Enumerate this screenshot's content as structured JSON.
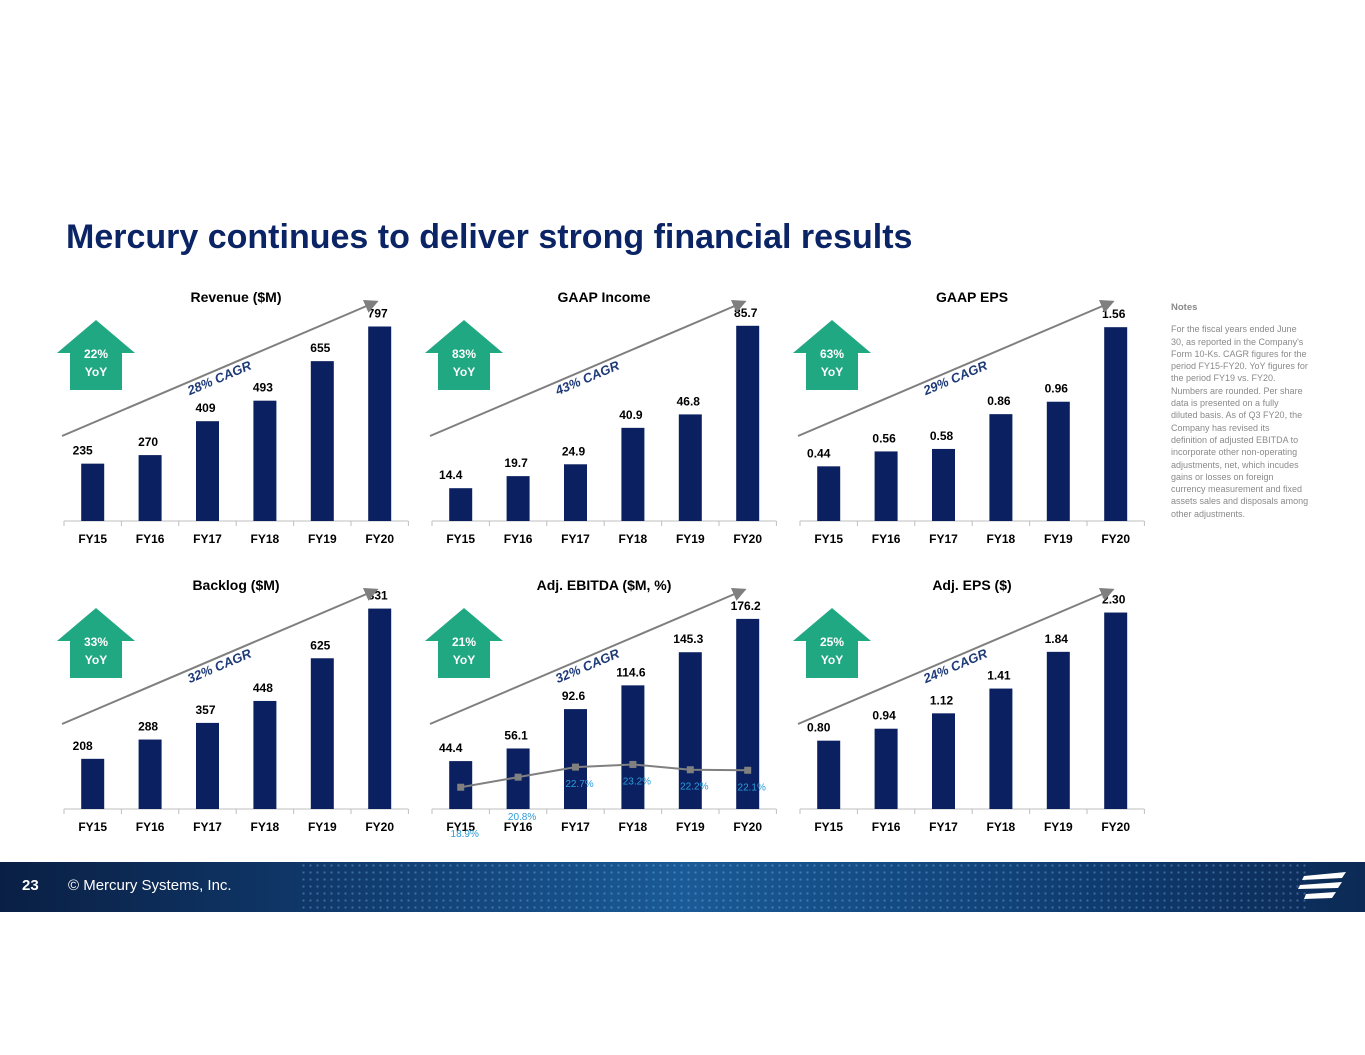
{
  "page_title": "Mercury continues to deliver strong financial results",
  "notes_heading": "Notes",
  "notes_lines": [
    "For the fiscal years ended June",
    "30, as reported in the Company's",
    "Form 10-Ks. CAGR figures for the",
    "period FY15-FY20. YoY figures for",
    "the period FY19 vs. FY20.",
    "Numbers are rounded. Per share",
    "data is presented on a fully",
    "diluted basis. As of Q3 FY20, the",
    "Company has revised its",
    "definition of adjusted EBITDA to",
    "incorporate other non-operating",
    "adjustments, net, which incudes",
    "gains or losses on foreign",
    "currency measurement and fixed",
    "assets sales and disposals among",
    "other adjustments."
  ],
  "footer": {
    "page_number": "23",
    "copyright": "© Mercury Systems, Inc."
  },
  "colors": {
    "bar": "#0b2060",
    "yoy_arrow": "#1fa882",
    "cagr_text": "#1e3a78",
    "trend_arrow": "#7f7f7f",
    "margin_line": "#808080",
    "margin_label": "#2b9cd8"
  },
  "chart_data": [
    {
      "type": "bar",
      "title": "Revenue ($M)",
      "categories": [
        "FY15",
        "FY16",
        "FY17",
        "FY18",
        "FY19",
        "FY20"
      ],
      "values": [
        235,
        270,
        409,
        493,
        655,
        797
      ],
      "labels": [
        "235",
        "270",
        "409",
        "493",
        "655",
        "797"
      ],
      "ylim": [
        0,
        840
      ],
      "yoy": "22%",
      "yoy_sub": "YoY",
      "cagr": "28% CAGR"
    },
    {
      "type": "bar",
      "title": "GAAP Income",
      "categories": [
        "FY15",
        "FY16",
        "FY17",
        "FY18",
        "FY19",
        "FY20"
      ],
      "values": [
        14.4,
        19.7,
        24.9,
        40.9,
        46.8,
        85.7
      ],
      "labels": [
        "14.4",
        "19.7",
        "24.9",
        "40.9",
        "46.8",
        "85.7"
      ],
      "ylim": [
        0,
        90
      ],
      "yoy": "83%",
      "yoy_sub": "YoY",
      "cagr": "43% CAGR"
    },
    {
      "type": "bar",
      "title": "GAAP EPS",
      "categories": [
        "FY15",
        "FY16",
        "FY17",
        "FY18",
        "FY19",
        "FY20"
      ],
      "values": [
        0.44,
        0.56,
        0.58,
        0.86,
        0.96,
        1.56
      ],
      "labels": [
        "0.44",
        "0.56",
        "0.58",
        "0.86",
        "0.96",
        "1.56"
      ],
      "ylim": [
        0,
        1.65
      ],
      "yoy": "63%",
      "yoy_sub": "YoY",
      "cagr": "29% CAGR"
    },
    {
      "type": "bar",
      "title": "Backlog ($M)",
      "categories": [
        "FY15",
        "FY16",
        "FY17",
        "FY18",
        "FY19",
        "FY20"
      ],
      "values": [
        208,
        288,
        357,
        448,
        625,
        831
      ],
      "labels": [
        "208",
        "288",
        "357",
        "448",
        "625",
        "831"
      ],
      "ylim": [
        0,
        850
      ],
      "yoy": "33%",
      "yoy_sub": "YoY",
      "cagr": "32% CAGR"
    },
    {
      "type": "bar",
      "title": "Adj. EBITDA ($M, %)",
      "categories": [
        "FY15",
        "FY16",
        "FY17",
        "FY18",
        "FY19",
        "FY20"
      ],
      "values": [
        44.4,
        56.1,
        92.6,
        114.6,
        145.3,
        176.2
      ],
      "labels": [
        "44.4",
        "56.1",
        "92.6",
        "114.6",
        "145.3",
        "176.2"
      ],
      "ylim": [
        0,
        190
      ],
      "yoy": "21%",
      "yoy_sub": "YoY",
      "cagr": "32% CAGR",
      "margin_pct": [
        18.9,
        20.8,
        22.7,
        23.2,
        22.2,
        22.1
      ],
      "margin_labels": [
        "18.9%",
        "20.8%",
        "22.7%",
        "23.2%",
        "22.2%",
        "22.1%"
      ]
    },
    {
      "type": "bar",
      "title": "Adj. EPS ($)",
      "categories": [
        "FY15",
        "FY16",
        "FY17",
        "FY18",
        "FY19",
        "FY20"
      ],
      "values": [
        0.8,
        0.94,
        1.12,
        1.41,
        1.84,
        2.3
      ],
      "labels": [
        "0.80",
        "0.94",
        "1.12",
        "1.41",
        "1.84",
        "2.30"
      ],
      "ylim": [
        0,
        2.4
      ],
      "yoy": "25%",
      "yoy_sub": "YoY",
      "cagr": "24% CAGR"
    }
  ]
}
